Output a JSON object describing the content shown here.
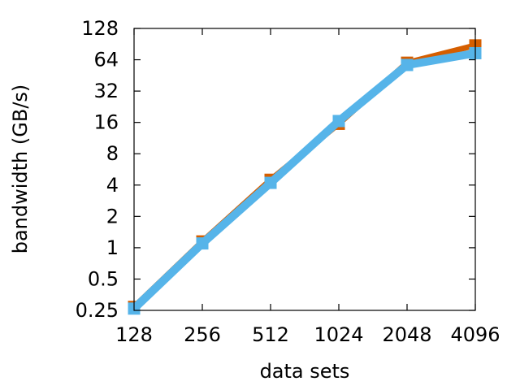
{
  "chart_data": {
    "type": "line",
    "title": "",
    "xlabel": "data sets",
    "ylabel": "bandwidth (GB/s)",
    "x_scale": "log2",
    "y_scale": "log2",
    "xlim": [
      128,
      4096
    ],
    "ylim": [
      0.25,
      128
    ],
    "x_ticks": [
      128,
      256,
      512,
      1024,
      2048,
      4096
    ],
    "x_tick_labels": [
      "128",
      "256",
      "512",
      "1024",
      "2048",
      "4096"
    ],
    "y_ticks": [
      0.25,
      0.5,
      1,
      2,
      4,
      8,
      16,
      32,
      64,
      128
    ],
    "y_tick_labels": [
      "0.25",
      "0.5",
      "1",
      "2",
      "4",
      "8",
      "16",
      "32",
      "64",
      "128"
    ],
    "grid": false,
    "legend": "none",
    "x": [
      128,
      256,
      512,
      1024,
      2048,
      4096
    ],
    "series": [
      {
        "color": "#d55e00",
        "marker": "square",
        "values": [
          0.27,
          1.15,
          4.5,
          15.5,
          60,
          88
        ]
      },
      {
        "color": "#56b4e9",
        "marker": "square",
        "values": [
          0.26,
          1.1,
          4.2,
          16.5,
          57,
          74
        ]
      }
    ]
  }
}
